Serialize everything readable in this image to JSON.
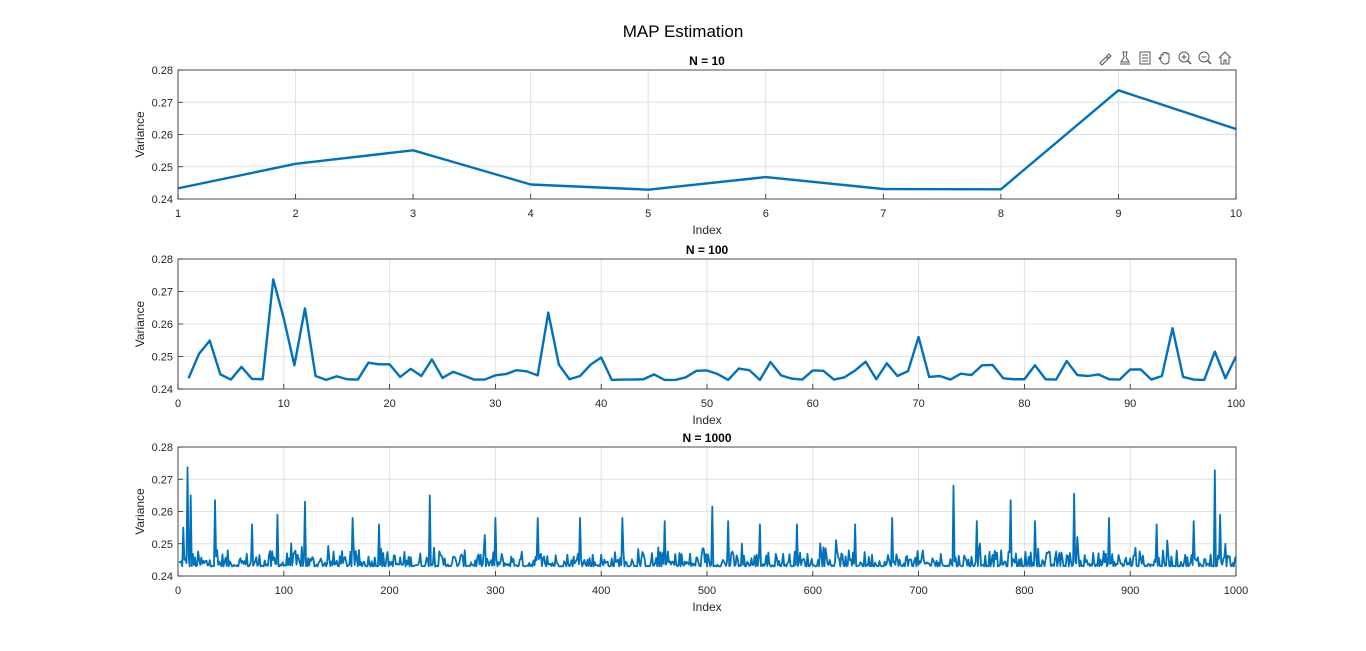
{
  "figure": {
    "title": "MAP Estimation"
  },
  "toolbar": [
    {
      "name": "brush-icon"
    },
    {
      "name": "data-tips-icon"
    },
    {
      "name": "legend-icon"
    },
    {
      "name": "pan-icon"
    },
    {
      "name": "zoom-in-icon"
    },
    {
      "name": "zoom-out-icon"
    },
    {
      "name": "home-icon"
    }
  ],
  "colors": {
    "line": "#0072BD",
    "grid": "#e1e1e1",
    "axis": "#262626"
  },
  "chart_data": [
    {
      "type": "line",
      "title": "N = 10",
      "xlabel": "Index",
      "ylabel": "Variance",
      "xlim": [
        1,
        10
      ],
      "ylim": [
        0.24,
        0.28
      ],
      "xticks": [
        1,
        2,
        3,
        4,
        5,
        6,
        7,
        8,
        9,
        10
      ],
      "yticks": [
        0.24,
        0.25,
        0.26,
        0.27,
        0.28
      ],
      "grid": true,
      "series": [
        {
          "x": [
            1,
            2,
            3,
            4,
            5,
            6,
            7,
            8,
            9,
            10
          ],
          "y": [
            0.2433,
            0.2509,
            0.2551,
            0.2445,
            0.2429,
            0.2468,
            0.2431,
            0.243,
            0.2737,
            0.2617
          ]
        }
      ]
    },
    {
      "type": "line",
      "title": "N = 100",
      "xlabel": "Index",
      "ylabel": "Variance",
      "xlim": [
        0,
        100
      ],
      "ylim": [
        0.24,
        0.28
      ],
      "xticks": [
        0,
        10,
        20,
        30,
        40,
        50,
        60,
        70,
        80,
        90,
        100
      ],
      "yticks": [
        0.24,
        0.25,
        0.26,
        0.27,
        0.28
      ],
      "grid": true,
      "series": [
        {
          "x_start": 1,
          "x_step": 1,
          "y": [
            0.2433,
            0.2509,
            0.2549,
            0.2445,
            0.2429,
            0.2468,
            0.2431,
            0.243,
            0.2737,
            0.2617,
            0.2473,
            0.2648,
            0.244,
            0.2428,
            0.2439,
            0.243,
            0.2429,
            0.2481,
            0.2476,
            0.2476,
            0.2437,
            0.2462,
            0.244,
            0.2491,
            0.2434,
            0.2453,
            0.2441,
            0.2429,
            0.2429,
            0.2442,
            0.2446,
            0.2458,
            0.2454,
            0.2442,
            0.2635,
            0.2475,
            0.243,
            0.244,
            0.2475,
            0.2497,
            0.2428,
            0.2429,
            0.2429,
            0.243,
            0.2445,
            0.2428,
            0.2428,
            0.2436,
            0.2456,
            0.2457,
            0.2446,
            0.2428,
            0.2463,
            0.2458,
            0.2428,
            0.2483,
            0.2442,
            0.2432,
            0.2429,
            0.2457,
            0.2456,
            0.2429,
            0.2436,
            0.2457,
            0.2484,
            0.243,
            0.2479,
            0.244,
            0.2455,
            0.256,
            0.2437,
            0.244,
            0.2429,
            0.2447,
            0.2443,
            0.2473,
            0.2474,
            0.2433,
            0.243,
            0.243,
            0.2473,
            0.243,
            0.2429,
            0.2486,
            0.2443,
            0.244,
            0.2445,
            0.243,
            0.2429,
            0.246,
            0.246,
            0.2429,
            0.244,
            0.2587,
            0.2437,
            0.2429,
            0.2428,
            0.2515,
            0.2433,
            0.25
          ]
        }
      ]
    },
    {
      "type": "line",
      "title": "N = 1000",
      "xlabel": "Index",
      "ylabel": "Variance",
      "xlim": [
        0,
        1000
      ],
      "ylim": [
        0.24,
        0.28
      ],
      "xticks": [
        0,
        100,
        200,
        300,
        400,
        500,
        600,
        700,
        800,
        900,
        1000
      ],
      "yticks": [
        0.24,
        0.25,
        0.26,
        0.27,
        0.28
      ],
      "grid": true,
      "series": [
        {
          "x_start": 1,
          "x_step": 1,
          "n": 1000,
          "baseline": 0.243,
          "noise": 0.0025,
          "spikes": [
            [
              5,
              0.255
            ],
            [
              9,
              0.2737
            ],
            [
              12,
              0.265
            ],
            [
              35,
              0.2635
            ],
            [
              70,
              0.256
            ],
            [
              94,
              0.259
            ],
            [
              120,
              0.263
            ],
            [
              165,
              0.258
            ],
            [
              190,
              0.256
            ],
            [
              238,
              0.265
            ],
            [
              300,
              0.258
            ],
            [
              340,
              0.258
            ],
            [
              380,
              0.258
            ],
            [
              420,
              0.258
            ],
            [
              460,
              0.257
            ],
            [
              505,
              0.2615
            ],
            [
              520,
              0.257
            ],
            [
              550,
              0.256
            ],
            [
              585,
              0.256
            ],
            [
              640,
              0.256
            ],
            [
              675,
              0.258
            ],
            [
              733,
              0.268
            ],
            [
              755,
              0.257
            ],
            [
              787,
              0.2635
            ],
            [
              810,
              0.257
            ],
            [
              847,
              0.2655
            ],
            [
              880,
              0.258
            ],
            [
              925,
              0.256
            ],
            [
              960,
              0.257
            ],
            [
              980,
              0.2728
            ],
            [
              985,
              0.259
            ],
            [
              990,
              0.25
            ]
          ]
        }
      ]
    }
  ]
}
